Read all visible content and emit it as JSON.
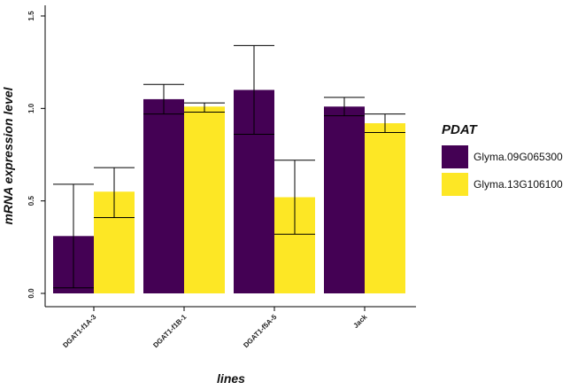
{
  "chart_data": {
    "type": "bar",
    "title": "",
    "xlabel": "lines",
    "ylabel": "mRNA expression level",
    "categories": [
      "DGAT1-f1A-3",
      "DGAT1-f1B-1",
      "DGAT1-f5A-5",
      "Jack"
    ],
    "series": [
      {
        "name": "Glyma.09G065300",
        "color": "#440154",
        "values": [
          0.31,
          1.05,
          1.1,
          1.01
        ],
        "error_low": [
          0.03,
          0.97,
          0.86,
          0.96
        ],
        "error_high": [
          0.59,
          1.13,
          1.34,
          1.06
        ]
      },
      {
        "name": "Glyma.13G106100",
        "color": "#FDE725",
        "values": [
          0.55,
          1.01,
          0.52,
          0.92
        ],
        "error_low": [
          0.41,
          0.98,
          0.32,
          0.87
        ],
        "error_high": [
          0.68,
          1.03,
          0.72,
          0.97
        ]
      }
    ],
    "yticks": [
      "0.0",
      "0.5",
      "1.0",
      "1.5"
    ],
    "ylim": [
      0,
      1.5
    ],
    "grid": false,
    "legend": {
      "title": "PDAT",
      "placement": "right"
    }
  }
}
